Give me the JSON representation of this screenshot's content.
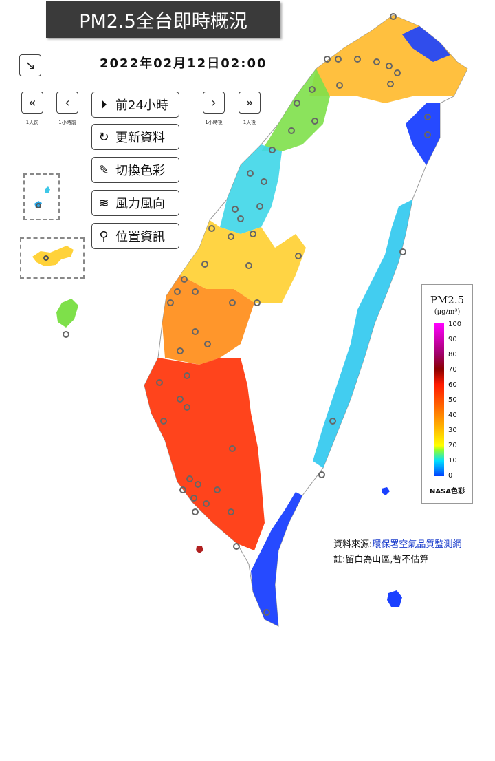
{
  "header": {
    "title": "PM2.5全台即時概況",
    "datetime": "2022年02月12日02:00"
  },
  "nav": {
    "day_back_label": "1天前",
    "hour_back_label": "1小時前",
    "hour_forward_label": "1小時後",
    "day_forward_label": "1天後"
  },
  "actions": {
    "prev24": "前24小時",
    "refresh": "更新資料",
    "color": "切換色彩",
    "wind": "風力風向",
    "location": "位置資訊"
  },
  "legend": {
    "title": "PM2.5",
    "unit": "(μg/m³)",
    "ticks": [
      "100",
      "90",
      "80",
      "70",
      "60",
      "50",
      "40",
      "30",
      "20",
      "10",
      "0"
    ],
    "footer": "NASA色彩"
  },
  "footer": {
    "source_prefix": "資料來源:",
    "source_link": "環保署空氣品質監測網",
    "note": "註:留白為山區,暫不估算"
  },
  "colors": {
    "low": "#0033ff",
    "mid": "#ffd000",
    "high": "#ff2a00"
  }
}
